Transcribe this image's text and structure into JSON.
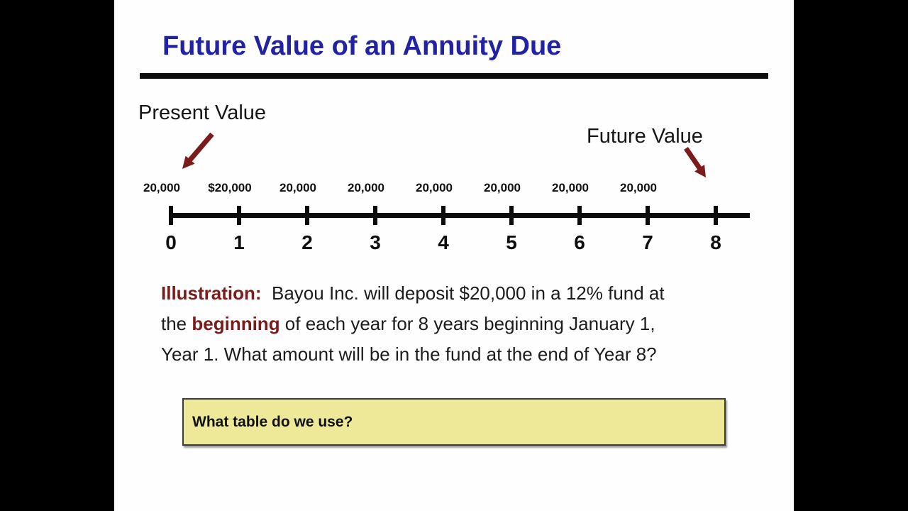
{
  "frame": {
    "letterbox_color": "#000000",
    "slide_background": "#fefefe"
  },
  "slide": {
    "title": "Future Value of an Annuity Due",
    "title_color": "#2222A4",
    "present_value_label": "Present Value",
    "future_value_label": "Future Value",
    "arrow_color": "#7B1B1B",
    "timeline": {
      "amounts": [
        "20,000",
        "$20,000",
        "20,000",
        "20,000",
        "20,000",
        "20,000",
        "20,000",
        "20,000"
      ],
      "periods": [
        "0",
        "1",
        "2",
        "3",
        "4",
        "5",
        "6",
        "7",
        "8"
      ]
    },
    "illustration": {
      "lines": [
        [
          {
            "t": "Illustration:",
            "m": true
          },
          {
            "t": "  Bayou Inc. will deposit $20,000 in a 12% fund at",
            "m": false
          }
        ],
        [
          {
            "t": "the ",
            "m": false
          },
          {
            "t": "beginning",
            "m": true
          },
          {
            "t": " of each year for 8 years beginning January 1,",
            "m": false
          }
        ],
        [
          {
            "t": "Year 1. What amount will be in the fund at the end of Year 8?",
            "m": false
          }
        ]
      ]
    },
    "question_box": {
      "text": "What table do we use?",
      "background": "#EDE999"
    }
  }
}
